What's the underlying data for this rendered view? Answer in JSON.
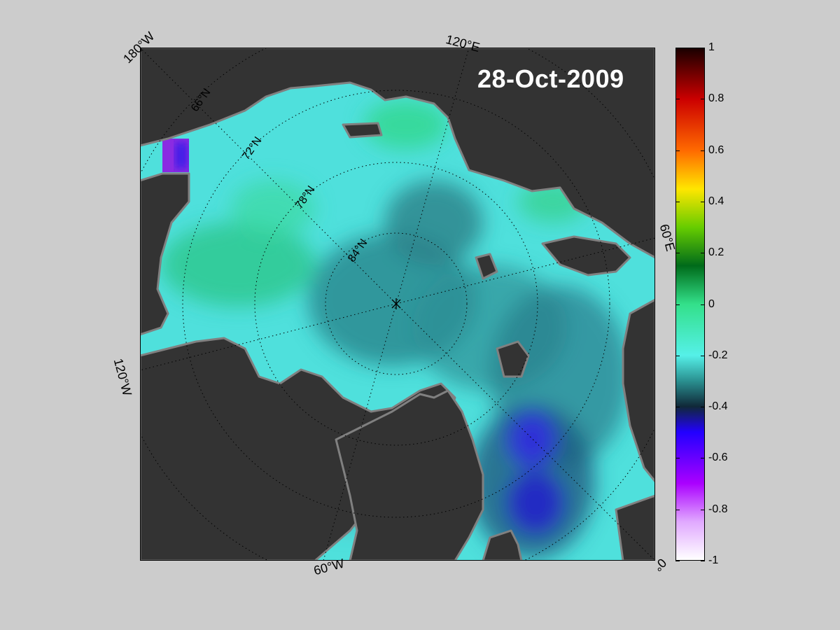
{
  "map": {
    "date": "28-Oct-2009",
    "longitude_labels": {
      "top_left": "180°W",
      "top": "120°E",
      "right": "60°E",
      "bottom_right": "0°",
      "bottom": "60°W",
      "left": "120°W"
    },
    "latitude_labels": [
      "66°N",
      "72°N",
      "78°N",
      "84°N"
    ],
    "colors": {
      "land": "#333333",
      "land_edge": "#808080",
      "ocean_base": "#4fe0dc",
      "background": "#cccccc"
    }
  },
  "colorbar": {
    "range": [
      -1,
      1
    ],
    "ticks": [
      "1",
      "0.8",
      "0.6",
      "0.4",
      "0.2",
      "0",
      "-0.2",
      "-0.4",
      "-0.6",
      "-0.8",
      "-1"
    ],
    "stops": [
      {
        "v": 1,
        "color": "#1a0000"
      },
      {
        "v": 0.8,
        "color": "#cc0000"
      },
      {
        "v": 0.6,
        "color": "#ff6a00"
      },
      {
        "v": 0.45,
        "color": "#ffe600"
      },
      {
        "v": 0.3,
        "color": "#66cc00"
      },
      {
        "v": 0.15,
        "color": "#006b1a"
      },
      {
        "v": 0,
        "color": "#33e08a"
      },
      {
        "v": -0.2,
        "color": "#55f0e8"
      },
      {
        "v": -0.3,
        "color": "#2a9090"
      },
      {
        "v": -0.4,
        "color": "#102838"
      },
      {
        "v": -0.5,
        "color": "#2200ff"
      },
      {
        "v": -0.7,
        "color": "#aa00ff"
      },
      {
        "v": -0.85,
        "color": "#e0a8ff"
      },
      {
        "v": -1,
        "color": "#ffffff"
      }
    ]
  }
}
